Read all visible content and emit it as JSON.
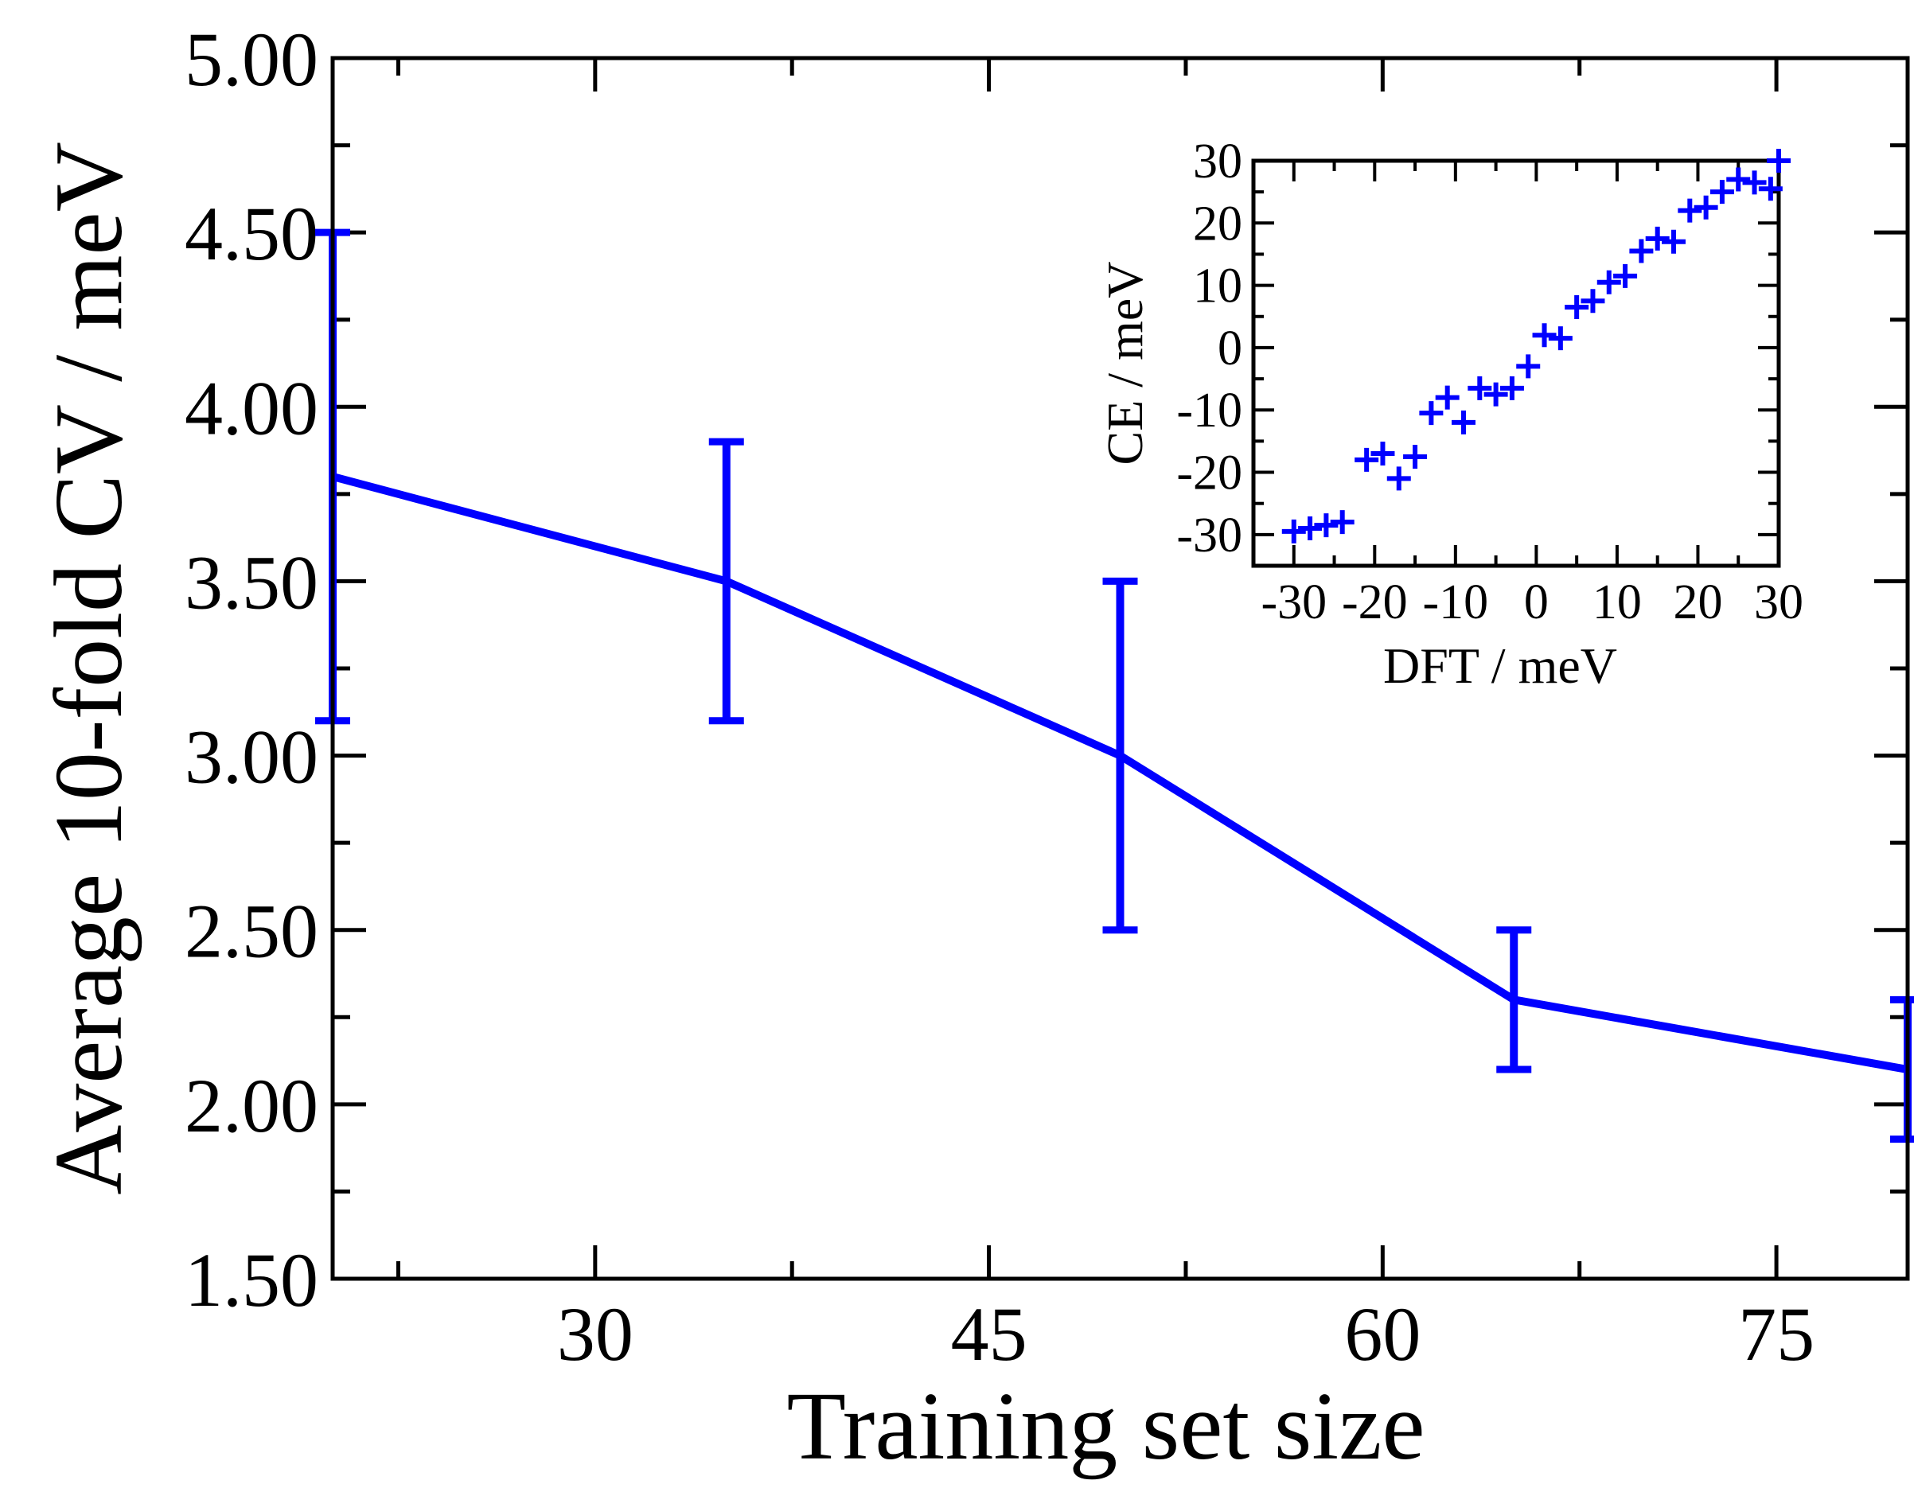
{
  "chart_data": [
    {
      "type": "line",
      "title": "",
      "xlabel": "Training set size",
      "ylabel": "Average 10-fold CV / meV",
      "xlim": [
        20,
        80
      ],
      "ylim": [
        1.5,
        5.0
      ],
      "x_ticks": [
        30,
        45,
        60,
        75
      ],
      "x_tick_labels": [
        "30",
        "45",
        "60",
        "75"
      ],
      "y_ticks": [
        1.5,
        2.0,
        2.5,
        3.0,
        3.5,
        4.0,
        4.5,
        5.0
      ],
      "y_tick_labels": [
        "1.50",
        "2.00",
        "2.50",
        "3.00",
        "3.50",
        "4.00",
        "4.50",
        "5.00"
      ],
      "grid": false,
      "color": "#0000ff",
      "series": [
        {
          "x": [
            20,
            35,
            50,
            65,
            80
          ],
          "values": [
            3.8,
            3.5,
            3.0,
            2.3,
            2.1
          ],
          "error_low": [
            3.1,
            3.1,
            2.5,
            2.1,
            1.9
          ],
          "error_high": [
            4.5,
            3.9,
            3.5,
            2.5,
            2.3
          ]
        }
      ]
    },
    {
      "type": "scatter",
      "title": "",
      "xlabel": "DFT / meV",
      "ylabel": "CE / meV",
      "xlim": [
        -35,
        30
      ],
      "ylim": [
        -35,
        30
      ],
      "x_ticks": [
        -30,
        -20,
        -10,
        0,
        10,
        20,
        30
      ],
      "x_tick_labels": [
        "-30",
        "-20",
        "-10",
        "0",
        "10",
        "20",
        "30"
      ],
      "y_ticks": [
        -30,
        -20,
        -10,
        0,
        10,
        20,
        30
      ],
      "y_tick_labels": [
        "-30",
        "-20",
        "-10",
        "0",
        "10",
        "20",
        "30"
      ],
      "grid": false,
      "marker": "plus",
      "color": "#0000ff",
      "series": [
        {
          "x": [
            -30,
            -28,
            -26,
            -24,
            -21,
            -19,
            -17,
            -15,
            -13,
            -11,
            -9,
            -7,
            -5,
            -3,
            -1,
            1,
            3,
            5,
            7,
            9,
            11,
            13,
            15,
            17,
            19,
            21,
            23,
            25,
            27,
            29,
            30
          ],
          "values": [
            -29.5,
            -29,
            -28.5,
            -28,
            -18,
            -17,
            -21,
            -17.5,
            -10.5,
            -8,
            -12,
            -6.5,
            -7.5,
            -6.5,
            -3,
            2,
            1.5,
            6.5,
            7.5,
            10.5,
            11.5,
            15.5,
            17.5,
            17,
            22,
            22.5,
            25,
            27,
            26.5,
            25.5,
            30
          ]
        }
      ]
    }
  ]
}
